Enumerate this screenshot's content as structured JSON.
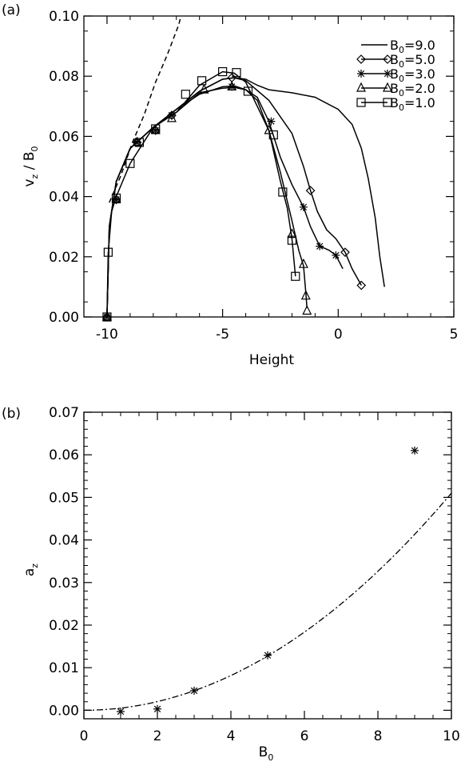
{
  "chart_data": [
    {
      "type": "line",
      "panel_label": "(a)",
      "xlabel": "Height",
      "ylabel_parts": {
        "main": "v",
        "sub": "z",
        "sep": " / ",
        "main2": "B",
        "sub2": "0"
      },
      "xlim": [
        -11,
        5
      ],
      "ylim": [
        0,
        0.1
      ],
      "xticks": [
        -10,
        -5,
        0,
        5
      ],
      "yticks": [
        0.0,
        0.02,
        0.04,
        0.06,
        0.08,
        0.1
      ],
      "ytick_labels": [
        "0.00",
        "0.02",
        "0.04",
        "0.06",
        "0.08",
        "0.10"
      ],
      "legend_position": "top-right",
      "series": [
        {
          "name": "B0=9.0",
          "name_main": "B",
          "name_sub": "0",
          "name_rest": "=9.0",
          "marker": "none",
          "line": "solid",
          "x": [
            -10.0,
            -9.9,
            -9.6,
            -9.0,
            -8.0,
            -7.0,
            -6.0,
            -5.0,
            -4.5,
            -4.0,
            -3.5,
            -3.0,
            -2.0,
            -1.0,
            0.0,
            0.6,
            1.0,
            1.3,
            1.6,
            1.8,
            2.0
          ],
          "y": [
            0.0,
            0.03,
            0.045,
            0.056,
            0.063,
            0.069,
            0.075,
            0.079,
            0.0795,
            0.079,
            0.077,
            0.0755,
            0.0745,
            0.073,
            0.069,
            0.064,
            0.056,
            0.046,
            0.033,
            0.02,
            0.01
          ]
        },
        {
          "name": "B0=5.0",
          "name_main": "B",
          "name_sub": "0",
          "name_rest": "=5.0",
          "marker": "diamond",
          "line": "solid",
          "x": [
            -10.0,
            -9.9,
            -9.6,
            -9.0,
            -8.0,
            -7.0,
            -6.0,
            -5.0,
            -4.5,
            -4.0,
            -3.0,
            -2.0,
            -1.5,
            -1.2,
            -0.9,
            -0.5,
            -0.1,
            0.3,
            0.6,
            1.0
          ],
          "y": [
            0.0,
            0.03,
            0.045,
            0.056,
            0.063,
            0.069,
            0.075,
            0.079,
            0.0795,
            0.0785,
            0.072,
            0.061,
            0.05,
            0.042,
            0.035,
            0.029,
            0.026,
            0.0215,
            0.016,
            0.0105
          ],
          "markers_x": [
            -10.0,
            -9.6,
            -8.7,
            -7.9,
            -7.2,
            -4.6,
            -1.2,
            0.3,
            1.0
          ],
          "markers_y": [
            0.0,
            0.039,
            0.058,
            0.062,
            0.067,
            0.0795,
            0.042,
            0.0215,
            0.0105
          ]
        },
        {
          "name": "B0=3.0",
          "name_main": "B",
          "name_sub": "0",
          "name_rest": "=3.0",
          "marker": "asterisk",
          "line": "solid",
          "x": [
            -10.0,
            -9.9,
            -9.6,
            -9.0,
            -8.0,
            -7.0,
            -6.0,
            -5.0,
            -4.5,
            -4.0,
            -3.5,
            -3.0,
            -2.5,
            -2.0,
            -1.5,
            -1.2,
            -0.8,
            -0.4,
            -0.1,
            0.2
          ],
          "y": [
            0.0,
            0.03,
            0.045,
            0.056,
            0.063,
            0.069,
            0.074,
            0.0765,
            0.0768,
            0.0755,
            0.073,
            0.065,
            0.053,
            0.044,
            0.0365,
            0.03,
            0.0235,
            0.0222,
            0.0205,
            0.016
          ],
          "markers_x": [
            -10.0,
            -9.6,
            -8.7,
            -7.9,
            -7.2,
            -4.6,
            -2.9,
            -1.5,
            -0.8,
            -0.1
          ],
          "markers_y": [
            0.0,
            0.039,
            0.058,
            0.062,
            0.067,
            0.0765,
            0.065,
            0.0365,
            0.0235,
            0.0205
          ]
        },
        {
          "name": "B0=2.0",
          "name_main": "B",
          "name_sub": "0",
          "name_rest": "=2.0",
          "marker": "triangle",
          "line": "solid",
          "x": [
            -10.0,
            -9.9,
            -9.6,
            -9.0,
            -8.0,
            -7.0,
            -6.0,
            -5.0,
            -4.5,
            -4.0,
            -3.5,
            -3.0,
            -2.5,
            -2.0,
            -1.7,
            -1.5,
            -1.4,
            -1.35
          ],
          "y": [
            0.0,
            0.03,
            0.045,
            0.056,
            0.063,
            0.068,
            0.0745,
            0.076,
            0.0763,
            0.0755,
            0.072,
            0.062,
            0.048,
            0.032,
            0.022,
            0.017,
            0.008,
            0.003
          ],
          "markers_x": [
            -10.0,
            -9.6,
            -8.7,
            -7.9,
            -7.2,
            -5.8,
            -4.6,
            -3.0,
            -2.0,
            -1.5,
            -1.4,
            -1.35
          ],
          "markers_y": [
            0.0,
            0.039,
            0.058,
            0.062,
            0.066,
            0.0755,
            0.0765,
            0.062,
            0.0275,
            0.0175,
            0.007,
            0.002
          ]
        },
        {
          "name": "B0=1.0",
          "name_main": "B",
          "name_sub": "0",
          "name_rest": "=1.0",
          "marker": "square",
          "line": "solid",
          "x": [
            -10.0,
            -9.95,
            -9.8,
            -9.6,
            -9.0,
            -8.0,
            -7.0,
            -6.0,
            -5.0,
            -4.5,
            -4.0,
            -3.5,
            -3.0,
            -2.5,
            -2.2,
            -2.0,
            -1.85
          ],
          "y": [
            0.0,
            0.021,
            0.035,
            0.04,
            0.051,
            0.063,
            0.068,
            0.077,
            0.0815,
            0.081,
            0.078,
            0.07,
            0.062,
            0.045,
            0.036,
            0.026,
            0.0135
          ],
          "markers_x": [
            -10.0,
            -9.95,
            -9.6,
            -9.0,
            -8.6,
            -7.9,
            -6.6,
            -5.9,
            -4.4,
            -5.0,
            -3.9,
            -2.8,
            -2.4,
            -2.0,
            -1.85
          ],
          "markers_y": [
            0.0,
            0.0215,
            0.0395,
            0.051,
            0.058,
            0.0625,
            0.074,
            0.0785,
            0.0812,
            0.0815,
            0.075,
            0.0605,
            0.0415,
            0.0255,
            0.0135
          ]
        },
        {
          "name": "",
          "marker": "none",
          "line": "dashed",
          "x": [
            -9.9,
            -9.4,
            -8.9,
            -8.4,
            -7.9,
            -7.4,
            -6.9,
            -6.8
          ],
          "y": [
            0.038,
            0.047,
            0.058,
            0.067,
            0.078,
            0.087,
            0.097,
            0.1
          ]
        }
      ]
    },
    {
      "type": "scatter",
      "panel_label": "(b)",
      "xlabel_parts": {
        "main": "B",
        "sub": "0"
      },
      "ylabel_parts": {
        "main": "a",
        "sub": "z"
      },
      "xlim": [
        0,
        10
      ],
      "ylim": [
        -0.002,
        0.07
      ],
      "xticks": [
        0,
        2,
        4,
        6,
        8,
        10
      ],
      "yticks": [
        0.0,
        0.01,
        0.02,
        0.03,
        0.04,
        0.05,
        0.06,
        0.07
      ],
      "ytick_labels": [
        "0.00",
        "0.01",
        "0.02",
        "0.03",
        "0.04",
        "0.05",
        "0.06",
        "0.07"
      ],
      "series": [
        {
          "name": "",
          "marker": "asterisk",
          "x": [
            1,
            2,
            3,
            5,
            9
          ],
          "y": [
            -0.0003,
            0.0003,
            0.0046,
            0.0129,
            0.061
          ]
        },
        {
          "name": "",
          "marker": "none",
          "line": "dash-dot",
          "fit": "quadratic",
          "fit_coefficient": 0.00051,
          "x_range": [
            0,
            10
          ]
        }
      ]
    }
  ]
}
